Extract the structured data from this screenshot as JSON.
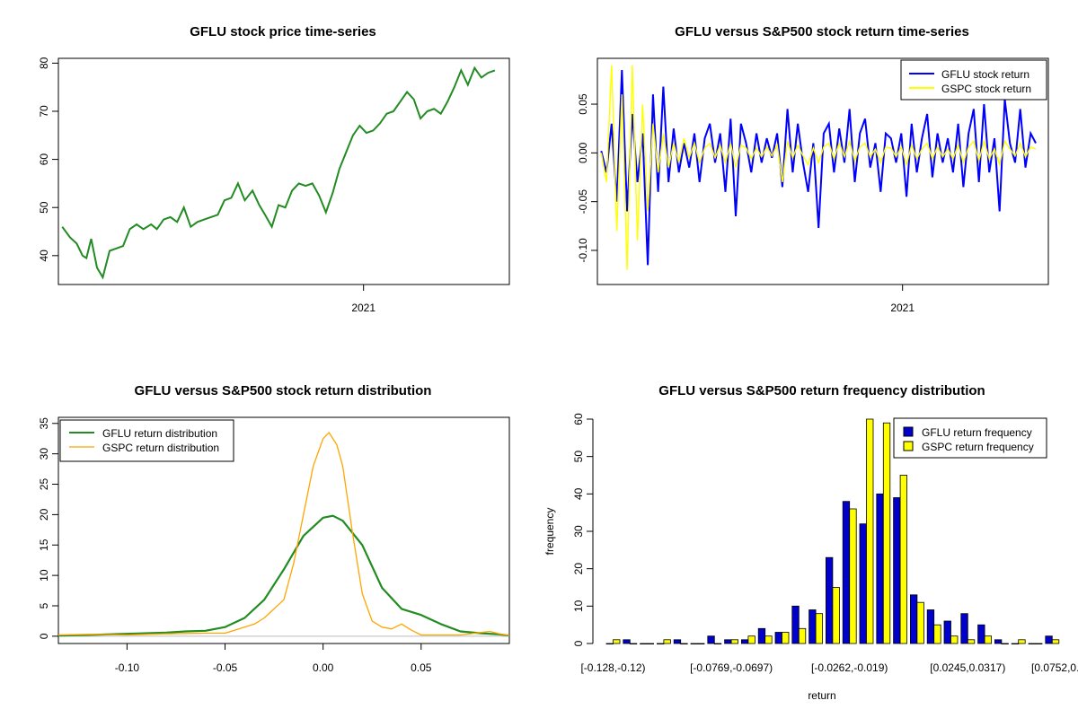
{
  "chart_data": [
    {
      "type": "line",
      "title": "GFLU stock price time-series",
      "xlabel": "",
      "ylabel": "",
      "x_ticks": [
        "2021"
      ],
      "x_range": [
        "2020-02-20",
        "2021-06-01"
      ],
      "ylim": [
        34,
        81
      ],
      "y_ticks": [
        40,
        50,
        60,
        70,
        80
      ],
      "series": [
        {
          "color": "#228b22",
          "points": [
            [
              "2020-02-24",
              46.0
            ],
            [
              "2020-03-03",
              43.8
            ],
            [
              "2020-03-10",
              42.5
            ],
            [
              "2020-03-16",
              40.0
            ],
            [
              "2020-03-20",
              39.5
            ],
            [
              "2020-03-25",
              43.5
            ],
            [
              "2020-03-31",
              37.5
            ],
            [
              "2020-04-06",
              35.5
            ],
            [
              "2020-04-13",
              41.0
            ],
            [
              "2020-04-20",
              41.5
            ],
            [
              "2020-04-27",
              42.0
            ],
            [
              "2020-05-04",
              45.5
            ],
            [
              "2020-05-11",
              46.5
            ],
            [
              "2020-05-18",
              45.5
            ],
            [
              "2020-05-26",
              46.5
            ],
            [
              "2020-06-01",
              45.5
            ],
            [
              "2020-06-08",
              47.5
            ],
            [
              "2020-06-15",
              48.0
            ],
            [
              "2020-06-22",
              47.0
            ],
            [
              "2020-06-29",
              50.0
            ],
            [
              "2020-07-06",
              46.0
            ],
            [
              "2020-07-13",
              47.0
            ],
            [
              "2020-07-20",
              47.5
            ],
            [
              "2020-07-27",
              48.0
            ],
            [
              "2020-08-03",
              48.5
            ],
            [
              "2020-08-10",
              51.5
            ],
            [
              "2020-08-17",
              52.0
            ],
            [
              "2020-08-24",
              55.0
            ],
            [
              "2020-08-31",
              51.5
            ],
            [
              "2020-09-08",
              53.5
            ],
            [
              "2020-09-15",
              50.5
            ],
            [
              "2020-09-21",
              48.5
            ],
            [
              "2020-09-28",
              46.0
            ],
            [
              "2020-10-05",
              50.5
            ],
            [
              "2020-10-12",
              50.0
            ],
            [
              "2020-10-19",
              53.5
            ],
            [
              "2020-10-26",
              55.0
            ],
            [
              "2020-11-02",
              54.5
            ],
            [
              "2020-11-09",
              55.0
            ],
            [
              "2020-11-16",
              52.5
            ],
            [
              "2020-11-23",
              49.0
            ],
            [
              "2020-11-30",
              53.0
            ],
            [
              "2020-12-07",
              58.0
            ],
            [
              "2020-12-14",
              61.5
            ],
            [
              "2020-12-21",
              65.0
            ],
            [
              "2020-12-28",
              67.0
            ],
            [
              "2021-01-04",
              65.5
            ],
            [
              "2021-01-11",
              66.0
            ],
            [
              "2021-01-18",
              67.5
            ],
            [
              "2021-01-25",
              69.5
            ],
            [
              "2021-02-01",
              70.0
            ],
            [
              "2021-02-08",
              72.0
            ],
            [
              "2021-02-15",
              74.0
            ],
            [
              "2021-02-22",
              72.5
            ],
            [
              "2021-03-01",
              68.5
            ],
            [
              "2021-03-08",
              70.0
            ],
            [
              "2021-03-15",
              70.5
            ],
            [
              "2021-03-22",
              69.5
            ],
            [
              "2021-03-29",
              72.0
            ],
            [
              "2021-04-05",
              75.0
            ],
            [
              "2021-04-12",
              78.5
            ],
            [
              "2021-04-19",
              75.5
            ],
            [
              "2021-04-26",
              79.0
            ],
            [
              "2021-05-03",
              77.0
            ],
            [
              "2021-05-10",
              78.0
            ],
            [
              "2021-05-17",
              78.5
            ]
          ]
        }
      ]
    },
    {
      "type": "line",
      "title": "GFLU versus S&P500 stock return time-series",
      "xlabel": "",
      "ylabel": "",
      "x_ticks": [
        "2021"
      ],
      "x_range": [
        "2020-02-20",
        "2021-06-01"
      ],
      "ylim": [
        -0.135,
        0.097
      ],
      "y_ticks": [
        -0.1,
        -0.05,
        0.0,
        0.05
      ],
      "y_tick_labels": [
        "-0.10",
        "-0.05",
        "0.00",
        "0.05"
      ],
      "legend": {
        "position": "top-right"
      },
      "series": [
        {
          "name": "GFLU stock return",
          "color": "#0000ff",
          "values": [
            0.002,
            -0.02,
            0.03,
            -0.05,
            0.085,
            -0.06,
            0.04,
            -0.03,
            0.02,
            -0.115,
            0.06,
            -0.04,
            0.068,
            -0.03,
            0.025,
            -0.02,
            0.01,
            -0.015,
            0.02,
            -0.03,
            0.015,
            0.03,
            -0.01,
            0.02,
            -0.04,
            0.035,
            -0.065,
            0.03,
            0.01,
            -0.02,
            0.02,
            -0.01,
            0.015,
            -0.005,
            0.02,
            -0.035,
            0.045,
            -0.02,
            0.03,
            -0.01,
            -0.04,
            0.01,
            -0.077,
            0.02,
            0.03,
            -0.02,
            0.025,
            -0.01,
            0.045,
            -0.03,
            0.02,
            0.035,
            -0.015,
            0.01,
            -0.04,
            0.02,
            0.015,
            -0.01,
            0.02,
            -0.045,
            0.03,
            -0.02,
            0.015,
            0.04,
            -0.025,
            0.02,
            -0.01,
            0.015,
            -0.02,
            0.03,
            -0.035,
            0.02,
            0.045,
            -0.03,
            0.05,
            -0.02,
            0.015,
            -0.06,
            0.055,
            0.01,
            -0.01,
            0.045,
            -0.015,
            0.02,
            0.01
          ]
        },
        {
          "name": "GSPC stock return",
          "color": "#ffff00",
          "values": [
            0.0,
            -0.03,
            0.09,
            -0.08,
            0.06,
            -0.12,
            0.09,
            -0.09,
            0.05,
            -0.06,
            0.03,
            -0.02,
            0.02,
            -0.015,
            0.01,
            -0.01,
            0.015,
            -0.005,
            0.01,
            -0.01,
            0.005,
            0.01,
            -0.005,
            0.008,
            -0.01,
            0.01,
            -0.015,
            0.008,
            0.005,
            -0.006,
            0.005,
            -0.004,
            0.006,
            -0.003,
            0.008,
            -0.03,
            0.012,
            -0.005,
            0.008,
            -0.003,
            -0.012,
            0.005,
            -0.01,
            0.006,
            0.01,
            -0.006,
            0.01,
            -0.004,
            0.012,
            -0.008,
            0.006,
            0.01,
            -0.004,
            0.004,
            -0.01,
            0.006,
            0.005,
            -0.004,
            0.006,
            -0.012,
            0.008,
            -0.006,
            0.004,
            0.01,
            -0.006,
            0.006,
            -0.004,
            0.004,
            -0.006,
            0.008,
            -0.01,
            0.006,
            0.012,
            -0.008,
            0.012,
            -0.006,
            0.004,
            -0.012,
            0.012,
            0.004,
            -0.003,
            0.01,
            -0.004,
            0.006,
            0.004
          ]
        }
      ]
    },
    {
      "type": "line",
      "title": "GFLU versus S&P500 stock return distribution",
      "xlabel": "",
      "ylabel": "",
      "xlim": [
        -0.135,
        0.095
      ],
      "ylim": [
        -1.2,
        36
      ],
      "x_ticks": [
        -0.1,
        -0.05,
        0.0,
        0.05
      ],
      "x_tick_labels": [
        "-0.10",
        "-0.05",
        "0.00",
        "0.05"
      ],
      "y_ticks": [
        0,
        5,
        10,
        15,
        20,
        25,
        30,
        35
      ],
      "legend": {
        "position": "top-left"
      },
      "series": [
        {
          "name": "GFLU return distribution",
          "color": "#228b22",
          "x": [
            -0.135,
            -0.12,
            -0.1,
            -0.08,
            -0.07,
            -0.06,
            -0.05,
            -0.04,
            -0.03,
            -0.02,
            -0.01,
            0.0,
            0.005,
            0.01,
            0.02,
            0.03,
            0.04,
            0.05,
            0.06,
            0.07,
            0.08,
            0.09,
            0.095
          ],
          "y": [
            0.1,
            0.2,
            0.4,
            0.6,
            0.8,
            0.9,
            1.5,
            3.0,
            6.0,
            11.0,
            16.5,
            19.5,
            19.8,
            19.0,
            15.0,
            8.0,
            4.5,
            3.5,
            2.0,
            0.8,
            0.5,
            0.3,
            0.1
          ]
        },
        {
          "name": "GSPC return distribution",
          "color": "#ffa500",
          "x": [
            -0.135,
            -0.12,
            -0.1,
            -0.08,
            -0.06,
            -0.05,
            -0.045,
            -0.035,
            -0.03,
            -0.02,
            -0.015,
            -0.01,
            -0.005,
            0.0,
            0.003,
            0.007,
            0.01,
            0.015,
            0.02,
            0.025,
            0.03,
            0.035,
            0.04,
            0.045,
            0.05,
            0.06,
            0.07,
            0.08,
            0.085,
            0.09,
            0.095
          ],
          "y": [
            0.2,
            0.3,
            0.2,
            0.4,
            0.5,
            0.5,
            1.0,
            2.0,
            3.0,
            6.0,
            12.0,
            20.0,
            28.0,
            32.5,
            33.5,
            31.5,
            28.0,
            17.0,
            7.0,
            2.5,
            1.5,
            1.2,
            2.0,
            1.0,
            0.2,
            0.2,
            0.2,
            0.6,
            0.8,
            0.4,
            0.1
          ]
        }
      ]
    },
    {
      "type": "bar",
      "title": "GFLU versus S&P500 return frequency distribution",
      "xlabel": "return",
      "ylabel": "frequency",
      "ylim": [
        0,
        60
      ],
      "y_ticks": [
        0,
        10,
        20,
        30,
        40,
        50,
        60
      ],
      "x_tick_labels": [
        "[-0.128,-0.12)",
        "[-0.0769,-0.0697)",
        "[-0.0262,-0.019)",
        "[0.0245,0.0317)",
        "[0.0752,0.0824)"
      ],
      "legend": {
        "position": "top-right"
      },
      "series": [
        {
          "name": "GFLU return frequency",
          "color": "#0000cd",
          "values": [
            0,
            1,
            0,
            0,
            1,
            0,
            2,
            1,
            1,
            4,
            3,
            10,
            9,
            23,
            38,
            32,
            40,
            39,
            13,
            9,
            6,
            8,
            5,
            1,
            0,
            0,
            2
          ]
        },
        {
          "name": "GSPC return frequency",
          "color": "#ffff00",
          "values": [
            1,
            0,
            0,
            1,
            0,
            0,
            0,
            1,
            2,
            2,
            3,
            4,
            8,
            15,
            36,
            60,
            59,
            45,
            11,
            5,
            2,
            1,
            2,
            0,
            1,
            0,
            1
          ]
        }
      ]
    }
  ]
}
